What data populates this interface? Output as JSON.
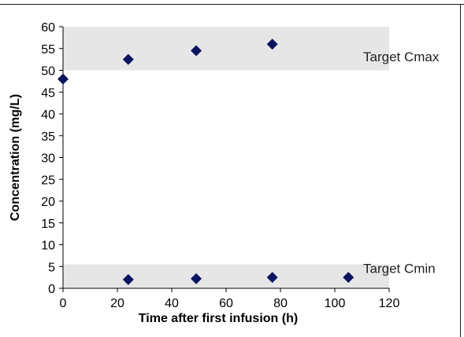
{
  "chart_data": {
    "type": "scatter",
    "xlabel": "Time after first infusion (h)",
    "ylabel": "Concentration (mg/L)",
    "xlim": [
      0,
      120
    ],
    "ylim": [
      0,
      60
    ],
    "x_ticks": [
      0,
      20,
      40,
      60,
      80,
      100,
      120
    ],
    "y_ticks": [
      0,
      5,
      10,
      15,
      20,
      25,
      30,
      35,
      40,
      45,
      50,
      55,
      60
    ],
    "grid": false,
    "marker_color": "#0a1560",
    "band_color": "#e6e6e6",
    "bands": [
      {
        "label": "Target Cmax",
        "y_from": 50,
        "y_to": 60
      },
      {
        "label": "Target Cmin",
        "y_from": 0,
        "y_to": 5.5
      }
    ],
    "series": [
      {
        "points": [
          {
            "x": 0,
            "y": 48
          },
          {
            "x": 24,
            "y": 52.5
          },
          {
            "x": 49,
            "y": 54.5
          },
          {
            "x": 77,
            "y": 56
          },
          {
            "x": 24,
            "y": 2
          },
          {
            "x": 49,
            "y": 2.2
          },
          {
            "x": 77,
            "y": 2.5
          },
          {
            "x": 105,
            "y": 2.5
          }
        ]
      }
    ]
  }
}
